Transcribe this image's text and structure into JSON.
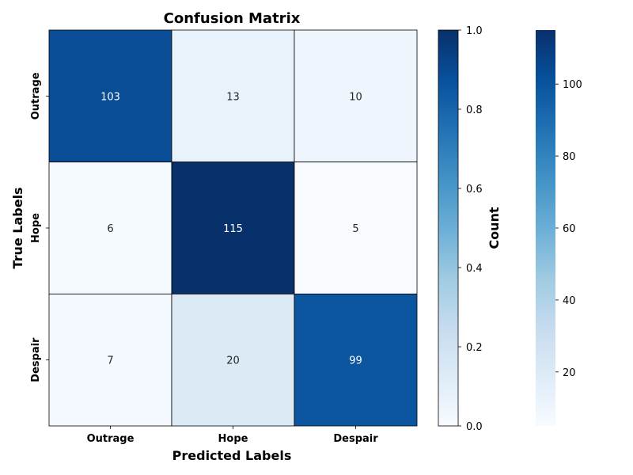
{
  "chart_data": {
    "type": "heatmap",
    "title": "Confusion Matrix",
    "xlabel": "Predicted Labels",
    "ylabel": "True Labels",
    "x_categories": [
      "Outrage",
      "Hope",
      "Despair"
    ],
    "y_categories": [
      "Outrage",
      "Hope",
      "Despair"
    ],
    "values": [
      [
        103,
        13,
        10
      ],
      [
        6,
        115,
        5
      ],
      [
        7,
        20,
        99
      ]
    ],
    "colormap": "Blues",
    "colormap_low": "#f7fbff",
    "colormap_high": "#08306b",
    "colorbar_normalized": {
      "label": "Count",
      "range": [
        0,
        1
      ],
      "ticks": [
        "0.0",
        "0.2",
        "0.4",
        "0.6",
        "0.8",
        "1.0"
      ]
    },
    "colorbar_counts": {
      "range": [
        5,
        115
      ],
      "ticks": [
        "20",
        "40",
        "60",
        "80",
        "100"
      ]
    }
  }
}
